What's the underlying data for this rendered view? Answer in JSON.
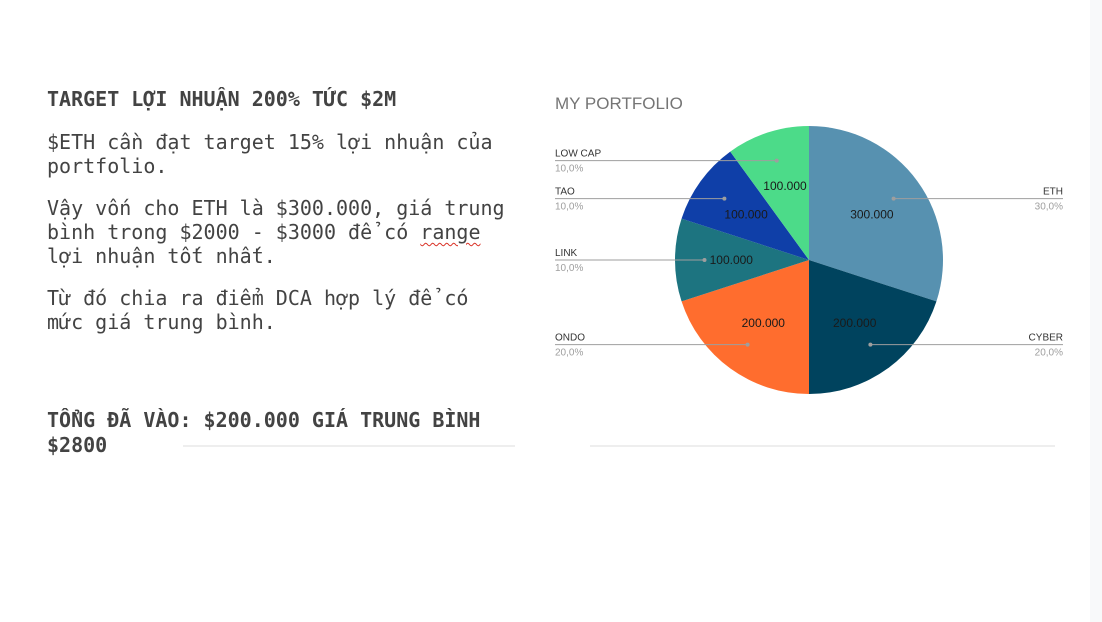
{
  "left": {
    "heading": "TARGET LỢI NHUẬN 200% TỨC $2M",
    "p1": "$ETH cần đạt target 15% lợi nhuận của portfolio.",
    "p2_before": "Vậy vốn cho ETH là $300.000, giá trung bình trong $2000 - $3000 để có ",
    "p2_squiggle": "range",
    "p2_after": " lợi nhuận tốt nhất.",
    "p3": "Từ đó chia ra điểm DCA hợp lý để có mức giá trung bình.",
    "total": "TỔNG ĐÃ VÀO: $200.000 GIÁ TRUNG BÌNH $2800"
  },
  "chart_data": {
    "type": "pie",
    "title": "MY PORTFOLIO",
    "slices": [
      {
        "name": "ETH",
        "value": 300000,
        "value_label": "300.000",
        "percent_label": "30,0%",
        "color": "#5791b0"
      },
      {
        "name": "CYBER",
        "value": 200000,
        "value_label": "200.000",
        "percent_label": "20,0%",
        "color": "#00435e"
      },
      {
        "name": "ONDO",
        "value": 200000,
        "value_label": "200.000",
        "percent_label": "20,0%",
        "color": "#ff6d2e"
      },
      {
        "name": "LINK",
        "value": 100000,
        "value_label": "100.000",
        "percent_label": "10,0%",
        "color": "#1d7480"
      },
      {
        "name": "TAO",
        "value": 100000,
        "value_label": "100.000",
        "percent_label": "10,0%",
        "color": "#0f3fa8"
      },
      {
        "name": "LOW CAP",
        "value": 100000,
        "value_label": "100.000",
        "percent_label": "10,0%",
        "color": "#4cdb89"
      }
    ],
    "legend": "callouts"
  }
}
